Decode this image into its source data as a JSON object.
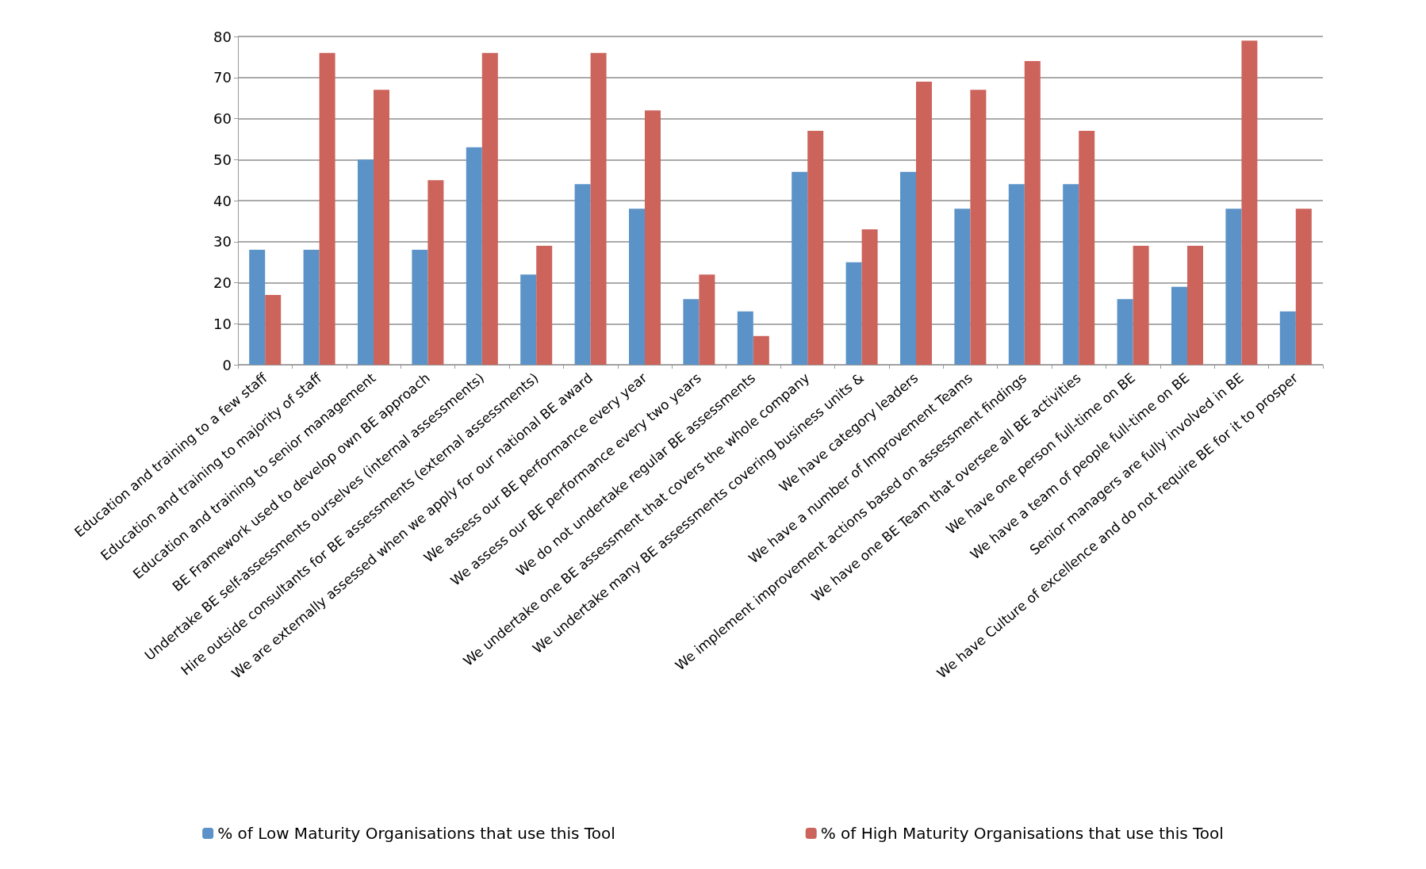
{
  "chart_data": {
    "type": "bar",
    "categories": [
      "Education and training to a few staff",
      "Education and training to majority of staff",
      "Education and training to senior management",
      "BE Framework used to develop own BE approach",
      "Undertake BE self-assessments ourselves (internal assessments)",
      "Hire outside consultants for BE assessments (external assessments)",
      "We are externally assessed when we apply for our national BE award",
      "We assess our BE performance every year",
      "We assess our BE performance every two years",
      "We do not undertake regular BE assessments",
      "We undertake one BE assessment that covers the whole company",
      "We undertake many BE assessments covering business units &",
      "We have category leaders",
      "We have a number of Improvement Teams",
      "We implement improvement actions based on assessment findings",
      "We have one BE Team that oversee all BE activities",
      "We have one person full-time on BE",
      "We have a team of people full-time on BE",
      "Senior managers are fully involved in BE",
      "We have Culture of excellence and do not require BE for it to prosper"
    ],
    "series": [
      {
        "name": "% of Low Maturity Organisations that use this Tool",
        "color": "#5b93c8",
        "values": [
          28,
          28,
          50,
          28,
          53,
          22,
          44,
          38,
          16,
          13,
          47,
          25,
          47,
          38,
          44,
          44,
          16,
          19,
          38,
          13
        ]
      },
      {
        "name": "% of High Maturity Organisations that use this Tool",
        "color": "#cc645c",
        "values": [
          17,
          76,
          67,
          45,
          76,
          29,
          76,
          62,
          22,
          7,
          57,
          33,
          69,
          67,
          74,
          57,
          29,
          29,
          79,
          38
        ]
      }
    ],
    "ylim": [
      0,
      80
    ],
    "yticks": [
      0,
      10,
      20,
      30,
      40,
      50,
      60,
      70,
      80
    ],
    "grid": "y",
    "legend": "bottom"
  }
}
